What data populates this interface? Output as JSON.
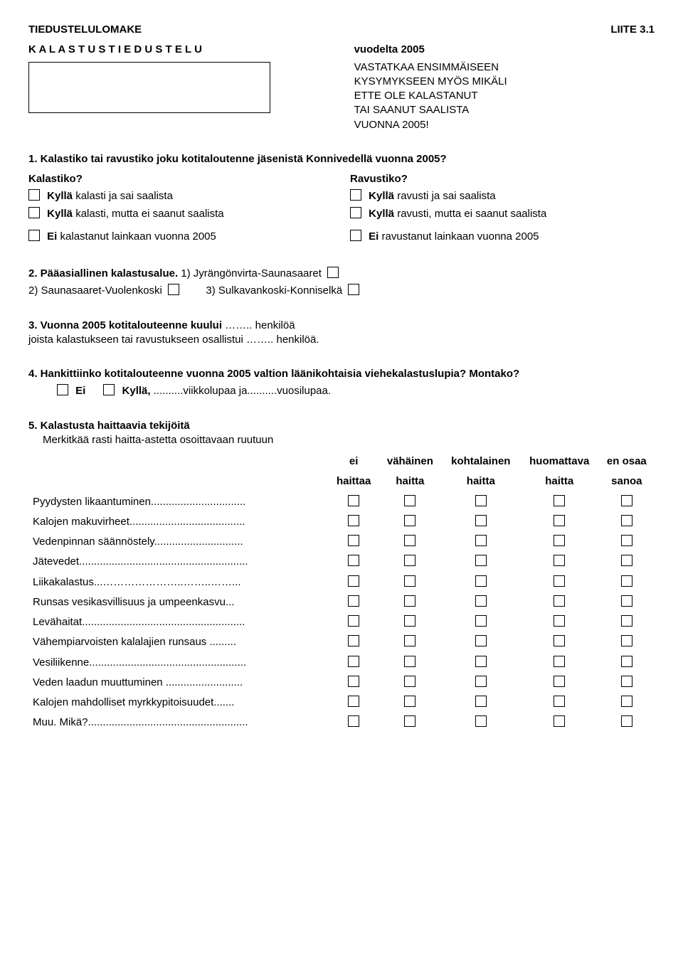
{
  "header": {
    "left_title": "TIEDUSTELULOMAKE",
    "right_title": "LIITE 3.1",
    "spaced_title": "K A L A S T U S T I E D U S T E L U",
    "year_part": "vuodelta 2005",
    "instruction_l1": "VASTATKAA ENSIMMÄISEEN",
    "instruction_l2": "KYSYMYKSEEN MYÖS MIKÄLI",
    "instruction_l3": "ETTE OLE KALASTANUT",
    "instruction_l4": "TAI SAANUT SAALISTA",
    "instruction_l5": "VUONNA 2005!"
  },
  "q1": {
    "title": "1. Kalastiko tai ravustiko joku kotitaloutenne jäsenistä Konnivedellä vuonna 2005?",
    "left_head": "Kalastiko?",
    "right_head": "Ravustiko?",
    "left_opt1_b": "Kyllä",
    "left_opt1_r": " kalasti ja sai saalista",
    "left_opt2_b": "Kyllä",
    "left_opt2_r": " kalasti, mutta ei saanut saalista",
    "left_opt3_b": "Ei",
    "left_opt3_r": " kalastanut lainkaan vuonna 2005",
    "right_opt1_b": "Kyllä",
    "right_opt1_r": " ravusti ja sai saalista",
    "right_opt2_b": "Kyllä",
    "right_opt2_r": " ravusti, mutta ei saanut saalista",
    "right_opt3_b": "Ei",
    "right_opt3_r": " ravustanut lainkaan vuonna 2005"
  },
  "q2": {
    "title_b": "2. Pääasiallinen kalastusalue.",
    "opt1": " 1) Jyrängönvirta-Saunasaaret ",
    "opt2": "2) Saunasaaret-Vuolenkoski ",
    "opt3": "3) Sulkavankoski-Konniselkä "
  },
  "q3": {
    "line1_b": "3. Vuonna 2005 kotitalouteenne kuului",
    "line1_r": " …….. henkilöä",
    "line2": "joista kalastukseen tai ravustukseen osallistui …….. henkilöä."
  },
  "q4": {
    "title": "4. Hankittiinko kotitalouteenne vuonna 2005 valtion läänikohtaisia viehekalastuslupia? Montako?",
    "ei": "Ei",
    "kylla": "Kyllä,",
    "rest": " ..........viikkolupaa ja..........vuosilupaa."
  },
  "q5": {
    "title": "5. Kalastusta haittaavia tekijöitä",
    "subtitle": "Merkitkää rasti haitta-astetta osoittavaan ruutuun",
    "headers": {
      "c1a": "ei",
      "c1b": "haittaa",
      "c2a": "vähäinen",
      "c2b": "haitta",
      "c3a": "kohtalainen",
      "c3b": "haitta",
      "c4a": "huomattava",
      "c4b": "haitta",
      "c5a": "en osaa",
      "c5b": "sanoa"
    },
    "rows": [
      "Pyydysten likaantuminen................................",
      "Kalojen makuvirheet.......................................",
      "Vedenpinnan säännöstely..............................",
      "Jätevedet.........................................................",
      "Liikakalastus...…………………..……..……...",
      "Runsas vesikasvillisuus ja umpeenkasvu...",
      "Levähaitat.......................................................",
      "Vähempiarvoisten kalalajien runsaus .........",
      "Vesiliikenne.....................................................",
      "Veden laadun muuttuminen ..........................",
      "Kalojen mahdolliset myrkkypitoisuudet.......",
      "Muu. Mikä?......................................................"
    ]
  }
}
